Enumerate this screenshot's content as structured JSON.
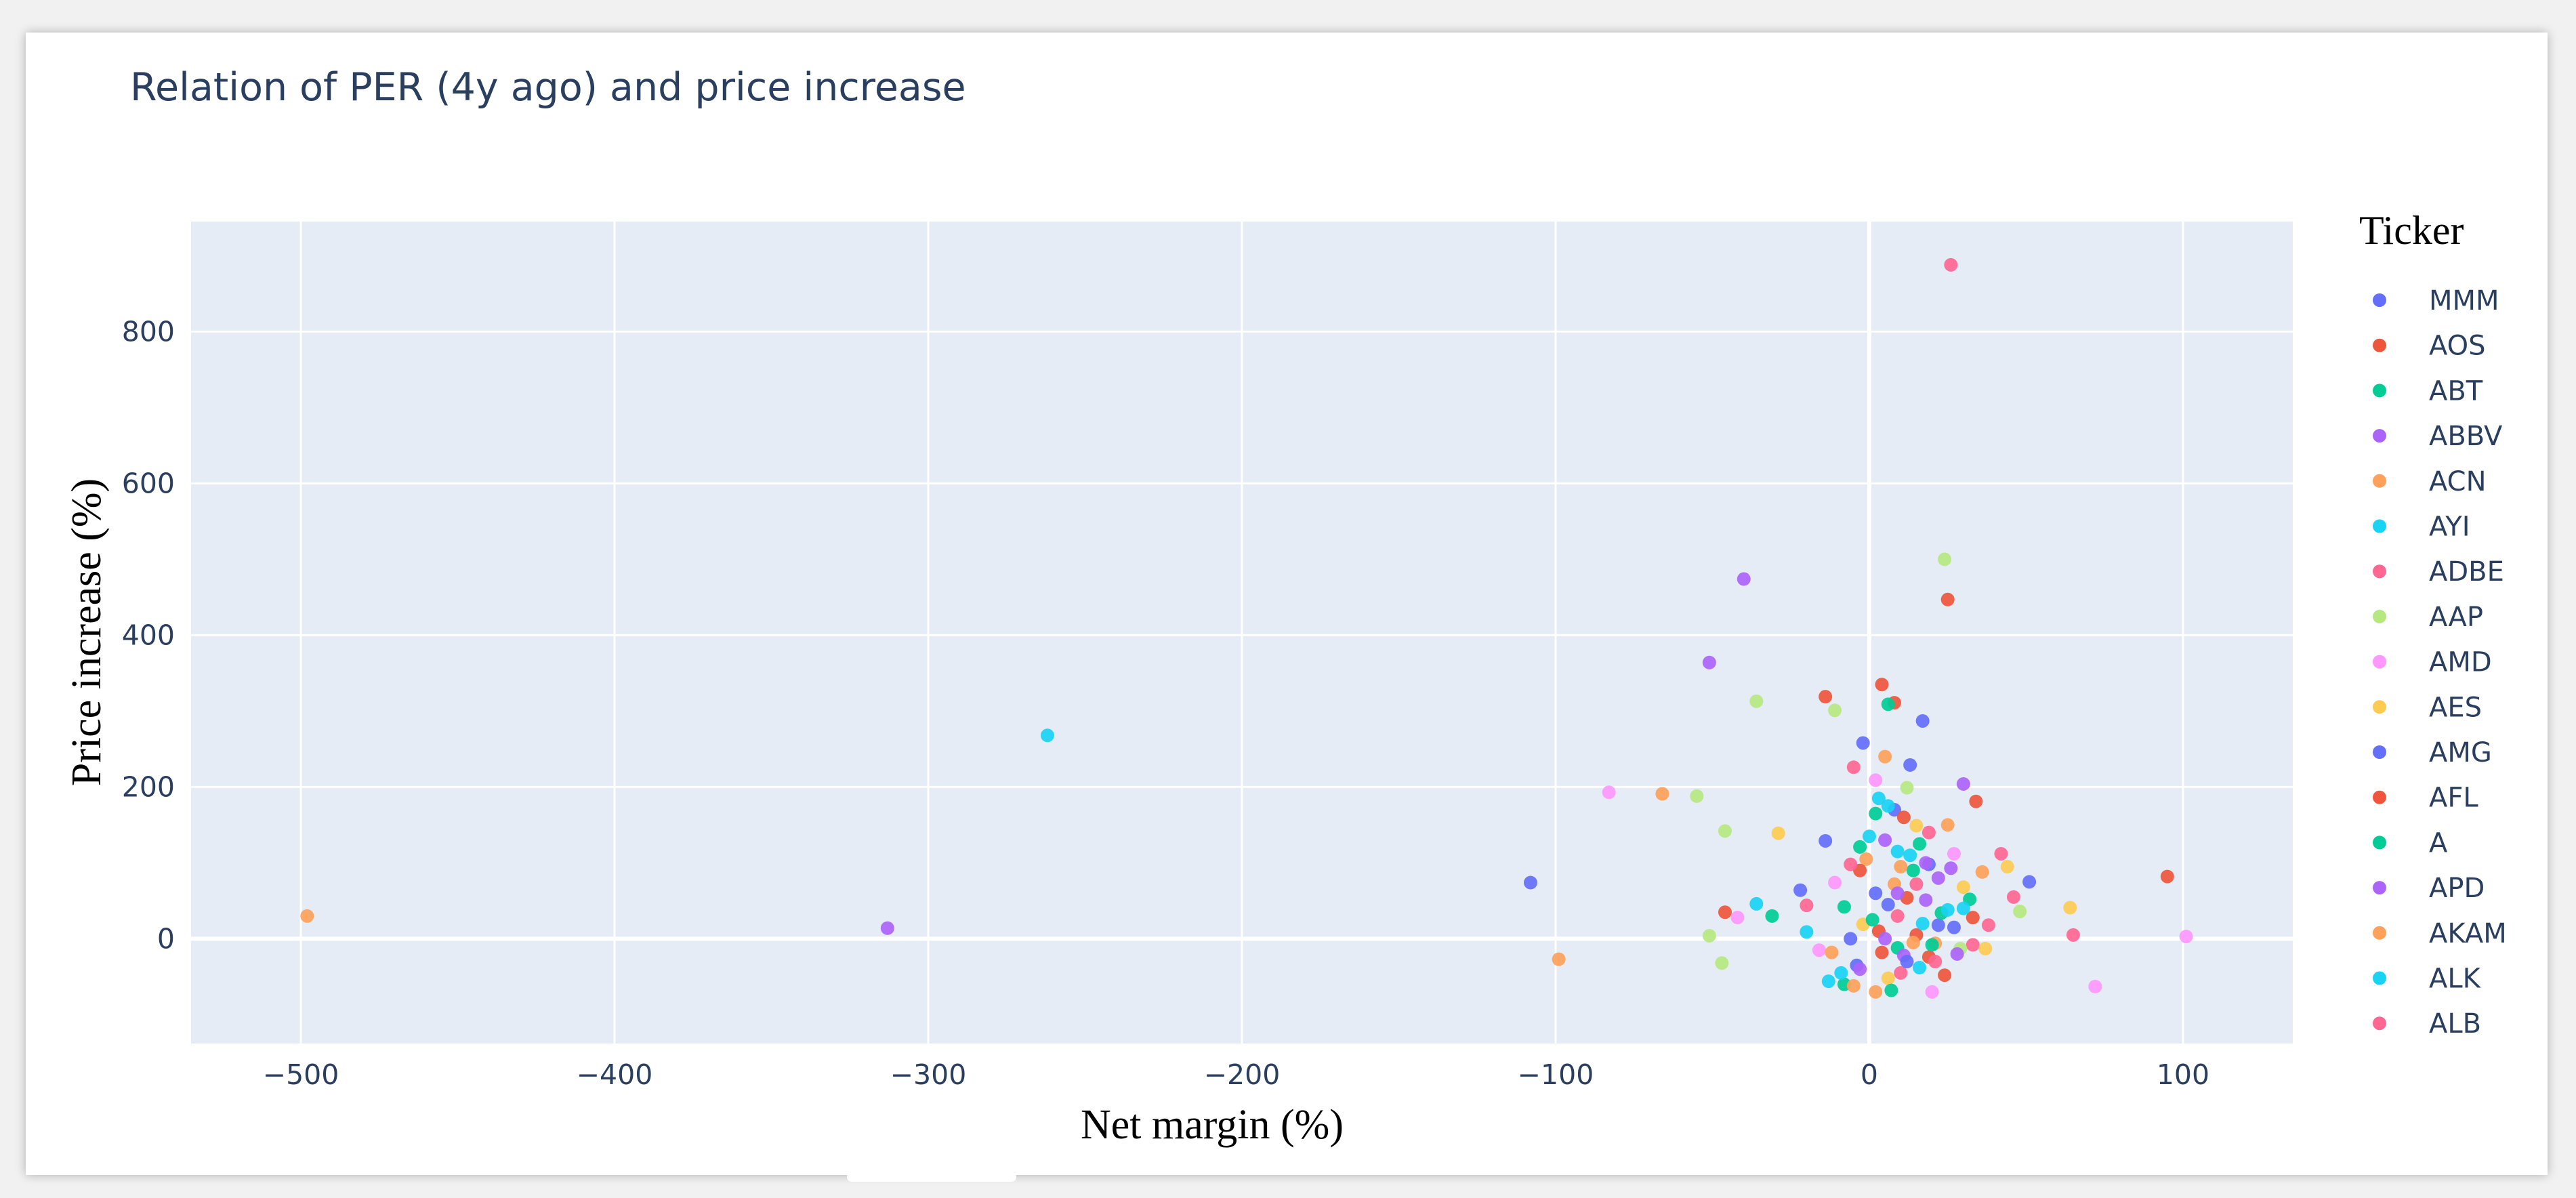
{
  "chart_data": {
    "type": "scatter",
    "title": "Relation of PER (4y ago) and price increase",
    "xlabel": "Net margin (%)",
    "ylabel": "Price increase (%)",
    "xlim": [
      -535,
      135
    ],
    "ylim": [
      -138,
      945
    ],
    "x_ticks": [
      -500,
      -400,
      -300,
      -200,
      -100,
      0,
      100
    ],
    "x_tick_labels": [
      "−500",
      "−400",
      "−300",
      "−200",
      "−100",
      "0",
      "100"
    ],
    "y_ticks": [
      0,
      200,
      400,
      600,
      800
    ],
    "y_tick_labels": [
      "0",
      "200",
      "400",
      "600",
      "800"
    ],
    "grid": true,
    "legend_title": "Ticker",
    "legend_position": "right",
    "series": [
      {
        "name": "MMM",
        "color": "#636efa",
        "points": [
          [
            -108,
            74
          ],
          [
            -14,
            129
          ],
          [
            -2,
            258
          ],
          [
            13,
            229
          ],
          [
            17,
            287
          ],
          [
            51,
            75
          ],
          [
            -22,
            64
          ],
          [
            6,
            45
          ],
          [
            22,
            18
          ],
          [
            -4,
            -35
          ]
        ]
      },
      {
        "name": "AOS",
        "color": "#ef553b",
        "points": [
          [
            25,
            447
          ],
          [
            4,
            335
          ],
          [
            -14,
            319
          ],
          [
            8,
            311
          ],
          [
            34,
            181
          ],
          [
            95,
            82
          ],
          [
            -46,
            35
          ],
          [
            12,
            54
          ],
          [
            19,
            -24
          ],
          [
            3,
            10
          ]
        ]
      },
      {
        "name": "ABT",
        "color": "#00cc96",
        "points": [
          [
            6,
            309
          ],
          [
            -31,
            30
          ],
          [
            -8,
            -60
          ],
          [
            2,
            165
          ],
          [
            14,
            90
          ],
          [
            9,
            -12
          ],
          [
            23,
            34
          ],
          [
            -3,
            121
          ]
        ]
      },
      {
        "name": "ABBV",
        "color": "#ab63fa",
        "points": [
          [
            -313,
            14
          ],
          [
            -40,
            474
          ],
          [
            -51,
            364
          ],
          [
            30,
            204
          ],
          [
            5,
            130
          ],
          [
            18,
            51
          ],
          [
            11,
            -22
          ],
          [
            26,
            93
          ]
        ]
      },
      {
        "name": "ACN",
        "color": "#ffa15a",
        "points": [
          [
            -498,
            30
          ],
          [
            -99,
            -27
          ],
          [
            -66,
            191
          ],
          [
            5,
            240
          ],
          [
            -1,
            105
          ],
          [
            21,
            -6
          ],
          [
            8,
            72
          ],
          [
            -5,
            -62
          ]
        ]
      },
      {
        "name": "AYI",
        "color": "#19d3f3",
        "points": [
          [
            -262,
            268
          ],
          [
            -36,
            46
          ],
          [
            -20,
            9
          ],
          [
            -13,
            -56
          ],
          [
            9,
            115
          ],
          [
            16,
            -38
          ],
          [
            3,
            185
          ],
          [
            25,
            38
          ]
        ]
      },
      {
        "name": "ADBE",
        "color": "#ff6692",
        "points": [
          [
            26,
            888
          ],
          [
            -5,
            226
          ],
          [
            65,
            5
          ],
          [
            42,
            112
          ],
          [
            -20,
            44
          ],
          [
            10,
            -45
          ],
          [
            19,
            140
          ],
          [
            33,
            -8
          ]
        ]
      },
      {
        "name": "AAP",
        "color": "#b6e880",
        "points": [
          [
            24,
            500
          ],
          [
            -36,
            313
          ],
          [
            -11,
            301
          ],
          [
            -55,
            188
          ],
          [
            -46,
            142
          ],
          [
            -51,
            4
          ],
          [
            -47,
            -32
          ],
          [
            48,
            36
          ],
          [
            12,
            199
          ],
          [
            29,
            -13
          ]
        ]
      },
      {
        "name": "AMD",
        "color": "#ff97ff",
        "points": [
          [
            -83,
            193
          ],
          [
            101,
            3
          ],
          [
            72,
            -63
          ],
          [
            -42,
            28
          ],
          [
            -16,
            -15
          ],
          [
            -11,
            74
          ],
          [
            2,
            209
          ],
          [
            20,
            -70
          ],
          [
            27,
            112
          ]
        ]
      },
      {
        "name": "AES",
        "color": "#fecb52",
        "points": [
          [
            -29,
            139
          ],
          [
            64,
            41
          ],
          [
            44,
            95
          ],
          [
            37,
            -13
          ],
          [
            6,
            -52
          ],
          [
            15,
            149
          ],
          [
            -2,
            19
          ],
          [
            30,
            68
          ]
        ]
      },
      {
        "name": "AMG",
        "color": "#636efa",
        "points": [
          [
            2,
            60
          ],
          [
            12,
            -30
          ],
          [
            27,
            15
          ],
          [
            8,
            170
          ],
          [
            -6,
            0
          ],
          [
            19,
            98
          ]
        ]
      },
      {
        "name": "AFL",
        "color": "#ef553b",
        "points": [
          [
            33,
            28
          ],
          [
            -3,
            90
          ],
          [
            15,
            5
          ],
          [
            24,
            -48
          ],
          [
            11,
            160
          ],
          [
            4,
            -18
          ]
        ]
      },
      {
        "name": "A",
        "color": "#00cc96",
        "points": [
          [
            20,
            -8
          ],
          [
            -8,
            42
          ],
          [
            32,
            52
          ],
          [
            7,
            -68
          ],
          [
            16,
            125
          ],
          [
            1,
            25
          ]
        ]
      },
      {
        "name": "APD",
        "color": "#ab63fa",
        "points": [
          [
            9,
            60
          ],
          [
            28,
            -20
          ],
          [
            -3,
            -40
          ],
          [
            18,
            100
          ],
          [
            22,
            80
          ],
          [
            5,
            0
          ]
        ]
      },
      {
        "name": "AKAM",
        "color": "#ffa15a",
        "points": [
          [
            14,
            -5
          ],
          [
            36,
            88
          ],
          [
            -12,
            -18
          ],
          [
            2,
            -70
          ],
          [
            25,
            150
          ],
          [
            10,
            95
          ]
        ]
      },
      {
        "name": "ALK",
        "color": "#19d3f3",
        "points": [
          [
            0,
            135
          ],
          [
            17,
            20
          ],
          [
            -9,
            -45
          ],
          [
            30,
            40
          ],
          [
            13,
            110
          ],
          [
            6,
            175
          ]
        ]
      },
      {
        "name": "ALB",
        "color": "#ff6692",
        "points": [
          [
            15,
            72
          ],
          [
            46,
            55
          ],
          [
            -6,
            98
          ],
          [
            21,
            -30
          ],
          [
            9,
            30
          ],
          [
            38,
            18
          ]
        ]
      }
    ]
  }
}
